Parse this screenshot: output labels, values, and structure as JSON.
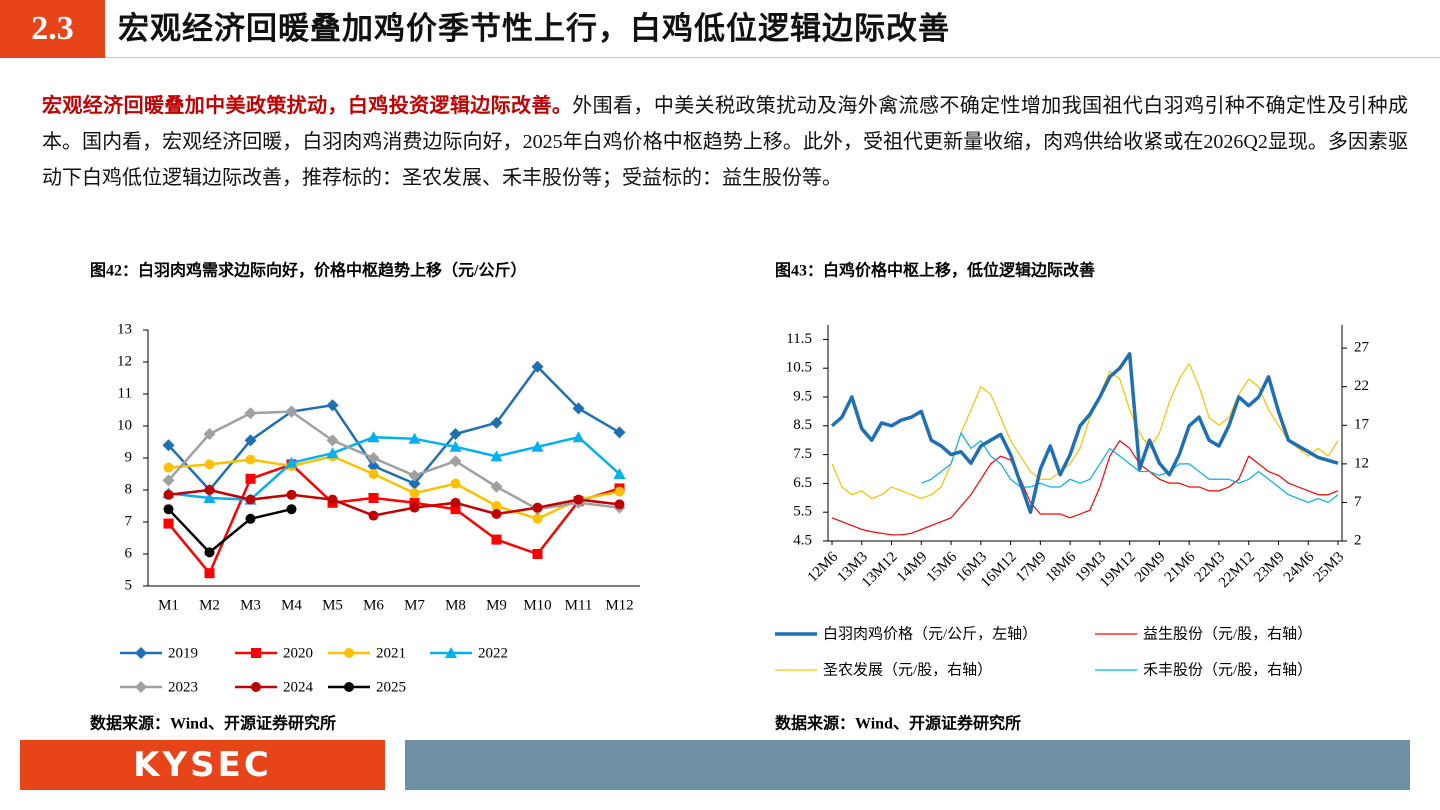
{
  "header": {
    "section": "2.3",
    "title": "宏观经济回暖叠加鸡价季节性上行，白鸡低位逻辑边际改善"
  },
  "paragraph": {
    "lead": "宏观经济回暖叠加中美政策扰动，白鸡投资逻辑边际改善。",
    "body": "外围看，中美关税政策扰动及海外禽流感不确定性增加我国祖代白羽鸡引种不确定性及引种成本。国内看，宏观经济回暖，白羽肉鸡消费边际向好，2025年白鸡价格中枢趋势上移。此外，受祖代更新量收缩，肉鸡供给收紧或在2026Q2显现。多因素驱动下白鸡低位逻辑边际改善，推荐标的：圣农发展、禾丰股份等；受益标的：益生股份等。"
  },
  "footer": {
    "logo": "KYSEC"
  },
  "chart_data": [
    {
      "type": "line",
      "title": "图42：白羽肉鸡需求边际向好，价格中枢趋势上移（元/公斤）",
      "source": "数据来源：Wind、开源证券研究所",
      "categories": [
        "M1",
        "M2",
        "M3",
        "M4",
        "M5",
        "M6",
        "M7",
        "M8",
        "M9",
        "M10",
        "M11",
        "M12"
      ],
      "ylim": [
        5,
        13
      ],
      "yticks": [
        5,
        6,
        7,
        8,
        9,
        10,
        11,
        12,
        13
      ],
      "series": [
        {
          "name": "2019",
          "color": "#1f6fb5",
          "marker": "diamond",
          "values": [
            9.4,
            8.0,
            9.55,
            10.45,
            10.65,
            8.75,
            8.2,
            9.75,
            10.1,
            11.85,
            10.55,
            9.8
          ]
        },
        {
          "name": "2020",
          "color": "#ff0000",
          "marker": "square",
          "values": [
            6.95,
            5.4,
            8.35,
            8.8,
            7.6,
            7.75,
            7.6,
            7.4,
            6.45,
            6.0,
            7.65,
            8.05
          ]
        },
        {
          "name": "2021",
          "color": "#ffc000",
          "marker": "circle",
          "values": [
            8.7,
            8.8,
            8.95,
            8.75,
            9.05,
            8.5,
            7.9,
            8.2,
            7.5,
            7.1,
            7.7,
            7.95
          ]
        },
        {
          "name": "2022",
          "color": "#00b0f0",
          "marker": "triangle",
          "values": [
            7.9,
            7.75,
            7.7,
            8.85,
            9.15,
            9.65,
            9.6,
            9.35,
            9.05,
            9.35,
            9.65,
            8.5
          ]
        },
        {
          "name": "2023",
          "color": "#a0a0a0",
          "marker": "diamond",
          "values": [
            8.3,
            9.75,
            10.4,
            10.45,
            9.55,
            9.0,
            8.45,
            8.9,
            8.1,
            7.4,
            7.6,
            7.45
          ]
        },
        {
          "name": "2024",
          "color": "#c00000",
          "marker": "circle",
          "values": [
            7.85,
            8.0,
            7.7,
            7.85,
            7.7,
            7.2,
            7.45,
            7.6,
            7.25,
            7.45,
            7.7,
            7.55
          ]
        },
        {
          "name": "2025",
          "color": "#000000",
          "marker": "circle",
          "values": [
            7.4,
            6.05,
            7.1,
            7.4,
            null,
            null,
            null,
            null,
            null,
            null,
            null,
            null
          ]
        }
      ]
    },
    {
      "type": "line",
      "title": "图43：白鸡价格中枢上移，低位逻辑边际改善",
      "source": "数据来源：Wind、开源证券研究所",
      "categories": [
        "12M6",
        null,
        null,
        "13M3",
        null,
        null,
        "13M12",
        null,
        null,
        "14M9",
        null,
        null,
        "15M6",
        null,
        null,
        "16M3",
        null,
        null,
        "16M12",
        null,
        null,
        "17M9",
        null,
        null,
        "18M6",
        null,
        null,
        "19M3",
        null,
        null,
        "19M12",
        null,
        null,
        "20M9",
        null,
        null,
        "21M6",
        null,
        null,
        "22M3",
        null,
        null,
        "22M12",
        null,
        null,
        "23M9",
        null,
        null,
        "24M6",
        null,
        null,
        "25M3"
      ],
      "ylim": [
        4.5,
        12
      ],
      "yticks": [
        4.5,
        5.5,
        6.5,
        7.5,
        8.5,
        9.5,
        10.5,
        11.5
      ],
      "y2lim": [
        2,
        30
      ],
      "y2ticks": [
        2,
        7,
        12,
        17,
        22,
        27
      ],
      "series": [
        {
          "name": "白羽肉鸡价格（元/公斤，左轴）",
          "color": "#1f6fb5",
          "width": 3.5,
          "values": [
            8.5,
            8.8,
            9.5,
            8.4,
            8.0,
            8.6,
            8.5,
            8.7,
            8.8,
            9.0,
            8.0,
            7.8,
            7.5,
            7.6,
            7.2,
            7.8,
            8.0,
            8.2,
            7.5,
            6.5,
            5.5,
            7.0,
            7.8,
            6.8,
            7.5,
            8.5,
            8.9,
            9.5,
            10.2,
            10.5,
            11.0,
            7.0,
            8.0,
            7.2,
            6.8,
            7.5,
            8.5,
            8.8,
            8.0,
            7.8,
            8.5,
            9.5,
            9.2,
            9.5,
            10.2,
            9.0,
            8.0,
            7.8,
            7.6,
            7.4,
            7.3,
            7.2
          ]
        },
        {
          "name": "益生股份（元/股，右轴）",
          "color": "#ff0000",
          "width": 1.2,
          "axis": "y2",
          "values": [
            5,
            4.5,
            4,
            3.5,
            3.2,
            3,
            2.8,
            2.8,
            3,
            3.5,
            4,
            4.5,
            5,
            6.5,
            8,
            10,
            12,
            13,
            12.5,
            10,
            7,
            5.5,
            5.5,
            5.5,
            5,
            5.5,
            6,
            9,
            13,
            15,
            14,
            12,
            11,
            10,
            9.5,
            9.5,
            9,
            9,
            8.5,
            8.5,
            9,
            10,
            13,
            12,
            11,
            10.5,
            9.5,
            9,
            8.5,
            8,
            8,
            8.5
          ]
        },
        {
          "name": "圣农发展（元/股，右轴）",
          "color": "#ffc000",
          "width": 1.2,
          "axis": "y2",
          "values": [
            12,
            9,
            8,
            8.5,
            7.5,
            8,
            9,
            8.5,
            8,
            7.5,
            8,
            9,
            12,
            16,
            19,
            22,
            21,
            18,
            15,
            13,
            11,
            10,
            10,
            11,
            12,
            14,
            18,
            21,
            24,
            23,
            19,
            16,
            14,
            16,
            20,
            23,
            25,
            22,
            18,
            17,
            18,
            21,
            23,
            22,
            19,
            17,
            15,
            14,
            13,
            14,
            13,
            15
          ]
        },
        {
          "name": "禾丰股份（元/股，右轴）",
          "color": "#00b0f0",
          "width": 1.2,
          "axis": "y2",
          "values": [
            null,
            null,
            null,
            null,
            null,
            null,
            null,
            null,
            null,
            9.5,
            10,
            11,
            12,
            16,
            14,
            15,
            13,
            12,
            10,
            9,
            9,
            9.5,
            9,
            9,
            10,
            9.5,
            10,
            12,
            14,
            13,
            12,
            11,
            11,
            10.5,
            11,
            12,
            12,
            11,
            10,
            10,
            10,
            9.5,
            10,
            11,
            10,
            9,
            8,
            7.5,
            7,
            7.5,
            7,
            8
          ]
        }
      ]
    }
  ]
}
